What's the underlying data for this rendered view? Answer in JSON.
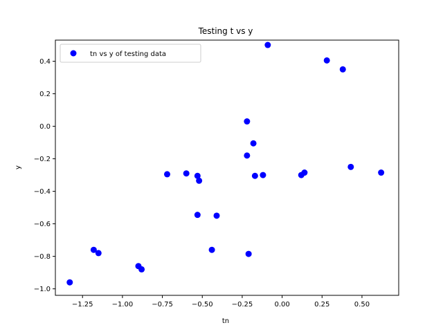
{
  "chart_data": {
    "type": "scatter",
    "title": "Testing t vs y",
    "xlabel": "tn",
    "ylabel": "y",
    "xlim": [
      -1.42,
      0.73
    ],
    "ylim": [
      -1.04,
      0.53
    ],
    "xticks": [
      -1.25,
      -1.0,
      -0.75,
      -0.5,
      -0.25,
      0.0,
      0.25,
      0.5
    ],
    "xtick_labels": [
      "−1.25",
      "−1.00",
      "−0.75",
      "−0.50",
      "−0.25",
      "0.00",
      "0.25",
      "0.50"
    ],
    "yticks": [
      -1.0,
      -0.8,
      -0.6,
      -0.4,
      -0.2,
      0.0,
      0.2,
      0.4
    ],
    "ytick_labels": [
      "−1.0",
      "−0.8",
      "−0.6",
      "−0.4",
      "−0.2",
      "0.0",
      "0.2",
      "0.4"
    ],
    "grid": false,
    "legend_position": "top-left",
    "series": [
      {
        "name": "tn vs y of testing data",
        "color": "#0000ff",
        "marker": "circle",
        "points": [
          {
            "x": -1.33,
            "y": -0.96
          },
          {
            "x": -1.18,
            "y": -0.76
          },
          {
            "x": -1.15,
            "y": -0.78
          },
          {
            "x": -0.9,
            "y": -0.86
          },
          {
            "x": -0.88,
            "y": -0.88
          },
          {
            "x": -0.72,
            "y": -0.295
          },
          {
            "x": -0.6,
            "y": -0.29
          },
          {
            "x": -0.53,
            "y": -0.305
          },
          {
            "x": -0.52,
            "y": -0.335
          },
          {
            "x": -0.53,
            "y": -0.545
          },
          {
            "x": -0.41,
            "y": -0.55
          },
          {
            "x": -0.44,
            "y": -0.76
          },
          {
            "x": -0.22,
            "y": 0.03
          },
          {
            "x": -0.18,
            "y": -0.105
          },
          {
            "x": -0.22,
            "y": -0.18
          },
          {
            "x": -0.17,
            "y": -0.305
          },
          {
            "x": -0.12,
            "y": -0.3
          },
          {
            "x": -0.21,
            "y": -0.785
          },
          {
            "x": -0.09,
            "y": 0.5
          },
          {
            "x": 0.12,
            "y": -0.3
          },
          {
            "x": 0.14,
            "y": -0.285
          },
          {
            "x": 0.28,
            "y": 0.405
          },
          {
            "x": 0.38,
            "y": 0.35
          },
          {
            "x": 0.43,
            "y": -0.25
          },
          {
            "x": 0.62,
            "y": -0.285
          }
        ]
      }
    ]
  }
}
